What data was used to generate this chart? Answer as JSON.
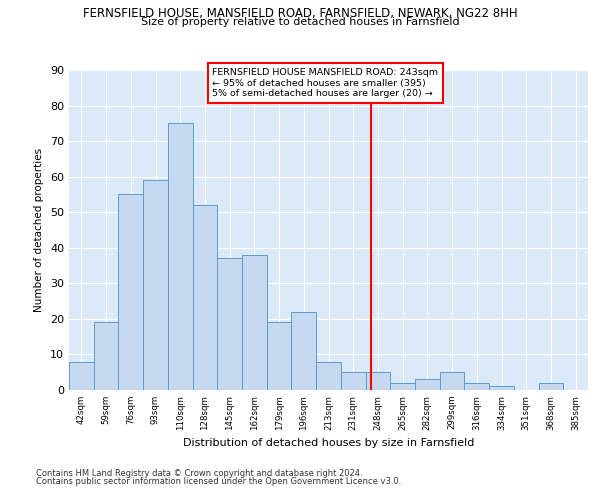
{
  "title_line1": "FERNSFIELD HOUSE, MANSFIELD ROAD, FARNSFIELD, NEWARK, NG22 8HH",
  "title_line2": "Size of property relative to detached houses in Farnsfield",
  "xlabel": "Distribution of detached houses by size in Farnsfield",
  "ylabel": "Number of detached properties",
  "categories": [
    "42sqm",
    "59sqm",
    "76sqm",
    "93sqm",
    "110sqm",
    "128sqm",
    "145sqm",
    "162sqm",
    "179sqm",
    "196sqm",
    "213sqm",
    "231sqm",
    "248sqm",
    "265sqm",
    "282sqm",
    "299sqm",
    "316sqm",
    "334sqm",
    "351sqm",
    "368sqm",
    "385sqm"
  ],
  "values": [
    8,
    19,
    55,
    59,
    75,
    52,
    37,
    38,
    19,
    22,
    8,
    5,
    5,
    2,
    3,
    5,
    2,
    1,
    0,
    2,
    0
  ],
  "bar_color": "#c6d9f0",
  "bar_edge_color": "#5b9bd5",
  "marker_label_line1": "FERNSFIELD HOUSE MANSFIELD ROAD: 243sqm",
  "marker_label_line2": "← 95% of detached houses are smaller (395)",
  "marker_label_line3": "5% of semi-detached houses are larger (20) →",
  "ylim": [
    0,
    90
  ],
  "yticks": [
    0,
    10,
    20,
    30,
    40,
    50,
    60,
    70,
    80,
    90
  ],
  "footer_line1": "Contains HM Land Registry data © Crown copyright and database right 2024.",
  "footer_line2": "Contains public sector information licensed under the Open Government Licence v3.0.",
  "bg_color": "#dce9f7",
  "grid_color": "#ffffff"
}
